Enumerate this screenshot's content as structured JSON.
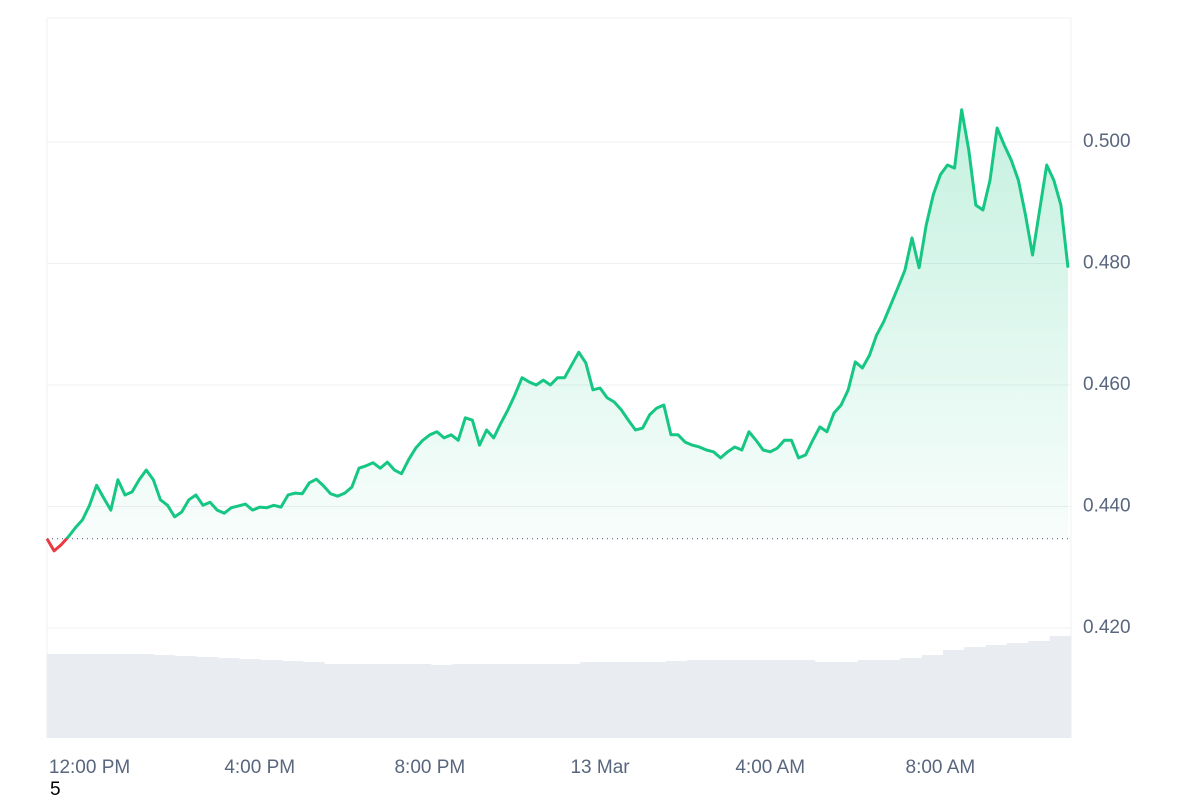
{
  "chart_data": {
    "type": "line",
    "categories": [
      null,
      null,
      null,
      null,
      null,
      null,
      "12:00 PM",
      null,
      null,
      null,
      null,
      null,
      null,
      null,
      null,
      null,
      null,
      null,
      null,
      null,
      null,
      null,
      null,
      null,
      null,
      null,
      null,
      null,
      null,
      null,
      "4:00 PM",
      null,
      null,
      null,
      null,
      null,
      null,
      null,
      null,
      null,
      null,
      null,
      null,
      null,
      null,
      null,
      null,
      null,
      null,
      null,
      null,
      null,
      null,
      null,
      "8:00 PM",
      null,
      null,
      null,
      null,
      null,
      null,
      null,
      null,
      null,
      null,
      null,
      null,
      null,
      null,
      null,
      null,
      null,
      null,
      null,
      null,
      null,
      null,
      null,
      "13 Mar",
      null,
      null,
      null,
      null,
      null,
      null,
      null,
      null,
      null,
      null,
      null,
      null,
      null,
      null,
      null,
      null,
      null,
      null,
      null,
      null,
      null,
      null,
      null,
      "4:00 AM",
      null,
      null,
      null,
      null,
      null,
      null,
      null,
      null,
      null,
      null,
      null,
      null,
      null,
      null,
      null,
      null,
      null,
      null,
      null,
      null,
      null,
      null,
      null,
      "8:00 AM",
      null,
      null,
      null,
      null,
      null,
      null,
      null,
      null,
      null,
      null,
      null,
      null,
      null,
      null,
      null,
      null,
      null,
      null
    ],
    "series": [
      {
        "color": "#16c784",
        "down_color": "#ea3943",
        "values": [
          0.4347,
          0.4327,
          0.4337,
          0.435,
          0.4365,
          0.4378,
          0.4402,
          0.4435,
          0.4414,
          0.4394,
          0.4444,
          0.4419,
          0.4424,
          0.4444,
          0.446,
          0.4444,
          0.4411,
          0.4402,
          0.4383,
          0.4391,
          0.4411,
          0.4419,
          0.4402,
          0.4407,
          0.4394,
          0.4389,
          0.4398,
          0.4401,
          0.4404,
          0.4394,
          0.4399,
          0.4398,
          0.4402,
          0.4399,
          0.4419,
          0.4422,
          0.4421,
          0.4439,
          0.4445,
          0.4434,
          0.4421,
          0.4417,
          0.4422,
          0.4432,
          0.4463,
          0.4467,
          0.4472,
          0.4463,
          0.4473,
          0.446,
          0.4454,
          0.4477,
          0.4496,
          0.4509,
          0.4518,
          0.4523,
          0.4513,
          0.4518,
          0.4509,
          0.4546,
          0.4542,
          0.4501,
          0.4526,
          0.4513,
          0.4537,
          0.4559,
          0.4584,
          0.4612,
          0.4605,
          0.46,
          0.4608,
          0.46,
          0.4612,
          0.4612,
          0.4633,
          0.4654,
          0.4636,
          0.4592,
          0.4595,
          0.4579,
          0.4572,
          0.4559,
          0.4542,
          0.4526,
          0.4529,
          0.4551,
          0.4562,
          0.4567,
          0.4518,
          0.4518,
          0.4506,
          0.4501,
          0.4498,
          0.4493,
          0.449,
          0.448,
          0.449,
          0.4498,
          0.4493,
          0.4523,
          0.4509,
          0.4493,
          0.449,
          0.4496,
          0.4509,
          0.4509,
          0.448,
          0.4485,
          0.4509,
          0.4531,
          0.4523,
          0.4554,
          0.4567,
          0.4592,
          0.4638,
          0.4628,
          0.4649,
          0.4682,
          0.4704,
          0.4732,
          0.476,
          0.4789,
          0.4842,
          0.4793,
          0.4863,
          0.4913,
          0.4946,
          0.4962,
          0.4957,
          0.5053,
          0.4987,
          0.4896,
          0.4888,
          0.4937,
          0.5023,
          0.4995,
          0.497,
          0.4937,
          0.488,
          0.4814,
          0.4888,
          0.4962,
          0.4937,
          0.4896,
          0.4793
        ]
      }
    ],
    "volume": {
      "color": "#e9ecf1",
      "values": [
        84,
        84,
        84,
        84,
        84,
        83,
        82,
        81,
        80,
        79,
        78,
        77,
        76,
        74,
        74,
        74,
        74,
        74,
        73,
        74,
        74,
        74,
        74,
        74,
        74,
        76,
        76,
        76,
        76,
        77,
        78,
        78,
        78,
        78,
        78,
        78,
        76,
        76,
        78,
        78,
        80,
        83,
        88,
        91,
        93,
        95,
        97,
        102
      ]
    },
    "ylim": [
      0.4019,
      0.5204
    ],
    "yticks": [
      {
        "value": 0.42,
        "label": "0.420"
      },
      {
        "value": 0.44,
        "label": "0.440"
      },
      {
        "value": 0.46,
        "label": "0.460"
      },
      {
        "value": 0.48,
        "label": "0.480"
      },
      {
        "value": 0.5,
        "label": "0.500"
      }
    ],
    "grid": true,
    "footer_text": "5"
  }
}
